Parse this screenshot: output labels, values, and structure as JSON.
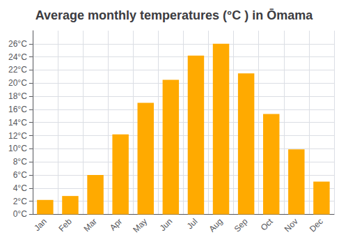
{
  "chart_data": {
    "type": "bar",
    "title": "Average monthly temperatures (°C ) in Ōmama",
    "categories": [
      "Jan",
      "Feb",
      "Mar",
      "Apr",
      "May",
      "Jun",
      "Jul",
      "Aug",
      "Sep",
      "Oct",
      "Nov",
      "Dec"
    ],
    "values": [
      2.2,
      2.8,
      6.0,
      12.2,
      17.0,
      20.5,
      24.2,
      26.0,
      21.5,
      15.3,
      9.9,
      5.0
    ],
    "color": "#FFAA00",
    "ylim": [
      0,
      28
    ],
    "yticks": [
      {
        "value": 0,
        "label": "0°C"
      },
      {
        "value": 2,
        "label": "2°C"
      },
      {
        "value": 4,
        "label": "4°C"
      },
      {
        "value": 6,
        "label": "6°C"
      },
      {
        "value": 8,
        "label": "8°C"
      },
      {
        "value": 10,
        "label": "10°C"
      },
      {
        "value": 12,
        "label": "12°C"
      },
      {
        "value": 14,
        "label": "14°C"
      },
      {
        "value": 16,
        "label": "16°C"
      },
      {
        "value": 18,
        "label": "18°C"
      },
      {
        "value": 20,
        "label": "20°C"
      },
      {
        "value": 22,
        "label": "22°C"
      },
      {
        "value": 24,
        "label": "24°C"
      },
      {
        "value": 26,
        "label": "26°C"
      }
    ],
    "grid": true
  }
}
